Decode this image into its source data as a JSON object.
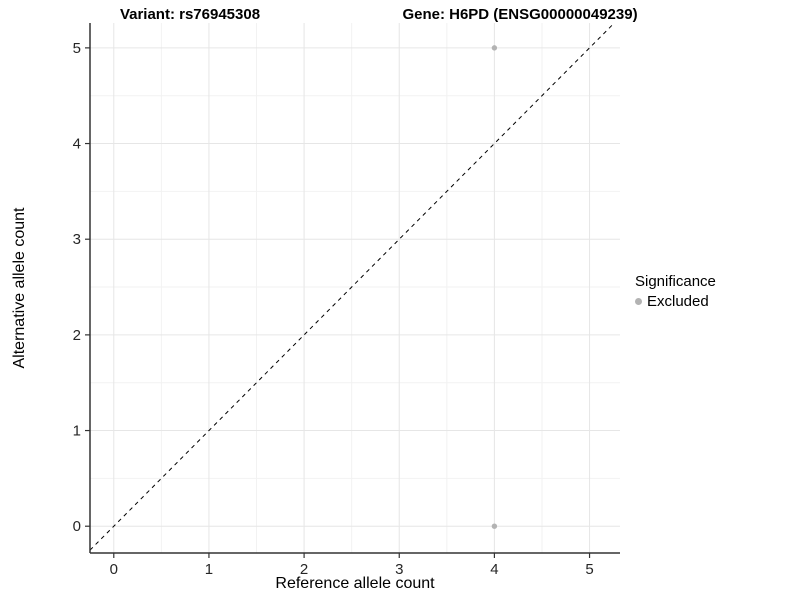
{
  "titles": {
    "variant": "Variant: rs76945308",
    "gene": "Gene: H6PD (ENSG00000049239)"
  },
  "chart_data": {
    "type": "scatter",
    "title_left": "Variant: rs76945308",
    "title_right": "Gene: H6PD (ENSG00000049239)",
    "xlabel": "Reference allele count",
    "ylabel": "Alternative allele count",
    "xlim": [
      -0.25,
      5.32
    ],
    "ylim": [
      -0.28,
      5.26
    ],
    "x_ticks": [
      0,
      1,
      2,
      3,
      4,
      5
    ],
    "y_ticks": [
      0,
      1,
      2,
      3,
      4,
      5
    ],
    "minor_grid_step": 0.5,
    "grid": true,
    "series": [
      {
        "name": "Excluded",
        "color": "#b3b3b3",
        "points": [
          [
            4,
            0
          ],
          [
            4,
            5
          ]
        ]
      }
    ],
    "reference_line": {
      "kind": "identity y=x",
      "style": "dashed",
      "color": "#000000"
    },
    "legend": {
      "title": "Significance",
      "position": "right",
      "items": [
        {
          "label": "Excluded",
          "color": "#b3b3b3"
        }
      ]
    }
  },
  "colors": {
    "background": "#ffffff",
    "major_grid": "#e6e6e6",
    "minor_grid": "#f2f2f2",
    "axis_line": "#333333",
    "tick_text": "#262626",
    "point": "#b3b3b3"
  }
}
